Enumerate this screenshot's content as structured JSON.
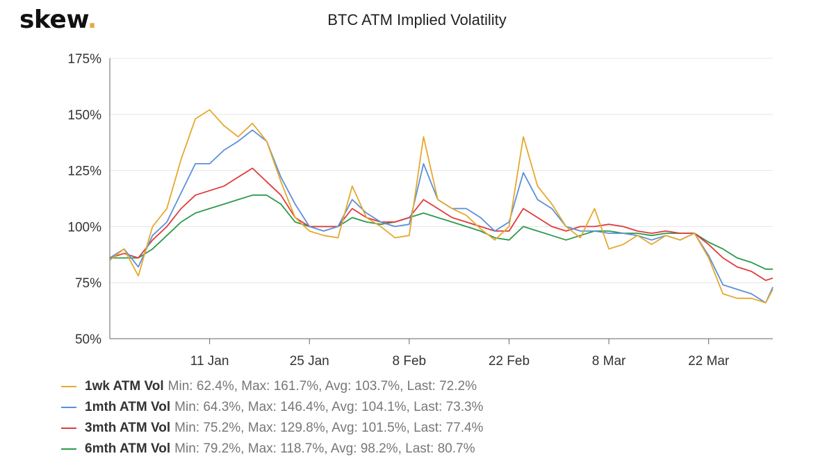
{
  "brand": {
    "logo_text": "skew",
    "logo_dot": ".",
    "logo_dot_color": "#e8a93a"
  },
  "chart_data": {
    "type": "line",
    "title": "BTC ATM Implied Volatility",
    "xlabel": "",
    "ylabel": "",
    "ylim": [
      50,
      175
    ],
    "y_ticks": [
      "50%",
      "75%",
      "100%",
      "125%",
      "150%",
      "175%"
    ],
    "y_tick_values": [
      50,
      75,
      100,
      125,
      150,
      175
    ],
    "x_range": [
      "2020-12-28",
      "2021-03-31"
    ],
    "x_ticks": [
      {
        "date": "2021-01-11",
        "label": "11 Jan"
      },
      {
        "date": "2021-01-25",
        "label": "25 Jan"
      },
      {
        "date": "2021-02-08",
        "label": "8 Feb"
      },
      {
        "date": "2021-02-22",
        "label": "22 Feb"
      },
      {
        "date": "2021-03-08",
        "label": "8 Mar"
      },
      {
        "date": "2021-03-22",
        "label": "22 Mar"
      }
    ],
    "grid": "horizontal",
    "legend_position": "bottom-left",
    "x": [
      "2020-12-28",
      "2020-12-30",
      "2021-01-01",
      "2021-01-03",
      "2021-01-05",
      "2021-01-07",
      "2021-01-09",
      "2021-01-11",
      "2021-01-13",
      "2021-01-15",
      "2021-01-17",
      "2021-01-19",
      "2021-01-21",
      "2021-01-23",
      "2021-01-25",
      "2021-01-27",
      "2021-01-29",
      "2021-01-31",
      "2021-02-02",
      "2021-02-04",
      "2021-02-06",
      "2021-02-08",
      "2021-02-10",
      "2021-02-12",
      "2021-02-14",
      "2021-02-16",
      "2021-02-18",
      "2021-02-20",
      "2021-02-22",
      "2021-02-24",
      "2021-02-26",
      "2021-02-28",
      "2021-03-02",
      "2021-03-04",
      "2021-03-06",
      "2021-03-08",
      "2021-03-10",
      "2021-03-12",
      "2021-03-14",
      "2021-03-16",
      "2021-03-18",
      "2021-03-20",
      "2021-03-22",
      "2021-03-24",
      "2021-03-26",
      "2021-03-28",
      "2021-03-30",
      "2021-03-31"
    ],
    "series": [
      {
        "name": "1wk ATM Vol",
        "stats": "Min: 62.4%, Max: 161.7%, Avg: 103.7%, Last: 72.2%",
        "color": "#e5a82c",
        "values": [
          85,
          90,
          78,
          100,
          108,
          130,
          148,
          152,
          145,
          140,
          146,
          138,
          120,
          104,
          98,
          96,
          95,
          118,
          104,
          100,
          95,
          96,
          140,
          112,
          108,
          105,
          99,
          94,
          100,
          140,
          118,
          110,
          100,
          95,
          108,
          90,
          92,
          96,
          92,
          96,
          94,
          97,
          86,
          70,
          68,
          68,
          66,
          72
        ]
      },
      {
        "name": "1mth ATM Vol",
        "stats": "Min: 64.3%, Max: 146.4%, Avg: 104.1%, Last: 73.3%",
        "color": "#5b8fd9",
        "values": [
          86,
          90,
          82,
          96,
          102,
          115,
          128,
          128,
          134,
          138,
          143,
          138,
          122,
          110,
          100,
          98,
          100,
          112,
          106,
          102,
          100,
          101,
          128,
          112,
          108,
          108,
          104,
          98,
          102,
          124,
          112,
          108,
          100,
          98,
          98,
          97,
          97,
          96,
          94,
          96,
          94,
          97,
          87,
          74,
          72,
          70,
          66,
          73
        ]
      },
      {
        "name": "3mth ATM Vol",
        "stats": "Min: 75.2%, Max: 129.8%, Avg: 101.5%, Last: 77.4%",
        "color": "#e03a3a",
        "values": [
          86,
          88,
          86,
          94,
          100,
          108,
          114,
          116,
          118,
          122,
          126,
          120,
          114,
          104,
          100,
          100,
          100,
          108,
          104,
          102,
          102,
          104,
          112,
          108,
          104,
          102,
          100,
          98,
          98,
          108,
          104,
          100,
          98,
          100,
          100,
          101,
          100,
          98,
          97,
          98,
          97,
          97,
          92,
          86,
          82,
          80,
          76,
          77
        ]
      },
      {
        "name": "6mth ATM Vol",
        "stats": "Min: 79.2%, Max: 118.7%, Avg: 98.2%, Last: 80.7%",
        "color": "#2a9a4a",
        "values": [
          86,
          86,
          86,
          90,
          96,
          102,
          106,
          108,
          110,
          112,
          114,
          114,
          110,
          102,
          100,
          100,
          100,
          104,
          102,
          101,
          102,
          104,
          106,
          104,
          102,
          100,
          98,
          95,
          94,
          100,
          98,
          96,
          94,
          96,
          98,
          98,
          97,
          97,
          96,
          97,
          97,
          97,
          93,
          90,
          86,
          84,
          81,
          81
        ]
      }
    ]
  }
}
